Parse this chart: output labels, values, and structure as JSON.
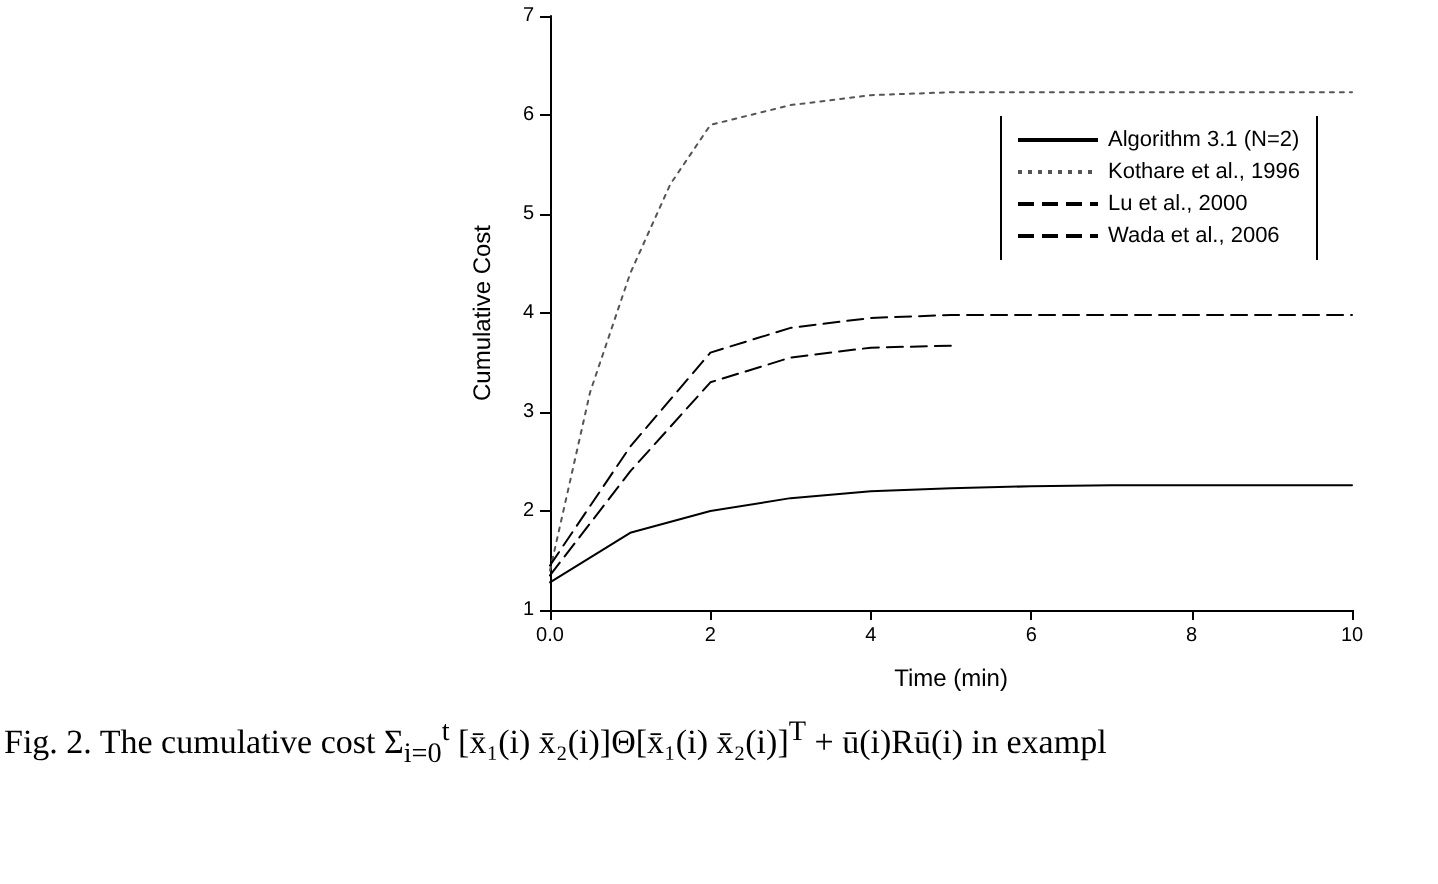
{
  "chart_data": {
    "type": "line",
    "xlabel": "Time (min)",
    "ylabel": "Cumulative Cost",
    "annotations": [
      "Fig. 2.   The cumulative cost Σ$_{i=0}$$^{t}$ [x̄₁(i) x̄₂(i)]Θ[x̄₁(i) x̄₂(i)]$^{T}$ + ū(i)Rū(i) in exampl"
    ],
    "xlim": [
      0,
      10
    ],
    "xticks": [
      {
        "value": 0,
        "label": "0.0"
      },
      2,
      4,
      6,
      8,
      10
    ],
    "ylim": [
      1,
      7
    ],
    "yticks": [
      1,
      2,
      3,
      4,
      5,
      6,
      7
    ],
    "grid": false,
    "legend": "top right",
    "marker": "none",
    "series": [
      {
        "name": "Algorithm 3.1 (N=2)",
        "color": "#000000",
        "line_style": "solid",
        "x": [
          0,
          1,
          2,
          3,
          4,
          5,
          6,
          7,
          10
        ],
        "values": [
          1.28,
          1.78,
          2.0,
          2.13,
          2.2,
          2.23,
          2.25,
          2.26,
          2.26
        ]
      },
      {
        "name": "Kothare et al., 1996",
        "color": "#555555",
        "line_style": "dotted",
        "x": [
          0,
          0.5,
          1,
          1.5,
          2,
          3,
          4,
          5,
          10
        ],
        "values": [
          1.4,
          3.2,
          4.4,
          5.3,
          5.9,
          6.1,
          6.2,
          6.23,
          6.23
        ]
      },
      {
        "name": "Lu et al., 2000",
        "color": "#000000",
        "line_style": "dashed",
        "x": [
          0,
          1,
          2,
          3,
          4,
          5,
          10
        ],
        "values": [
          1.45,
          2.65,
          3.6,
          3.85,
          3.95,
          3.98,
          3.98
        ]
      },
      {
        "name": "Wada et al., 2006",
        "color": "#000000",
        "line_style": "dashed",
        "x": [
          0,
          1,
          2,
          3,
          4,
          5
        ],
        "values": [
          1.35,
          2.4,
          3.3,
          3.55,
          3.65,
          3.67
        ]
      }
    ]
  }
}
